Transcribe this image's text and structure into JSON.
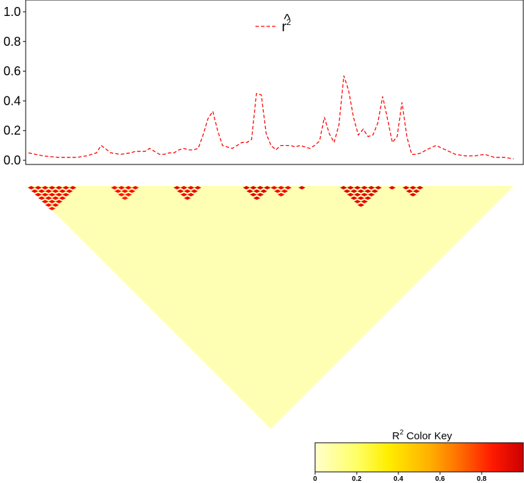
{
  "chart_data": [
    {
      "type": "line",
      "ylim": [
        0,
        1.0
      ],
      "y_ticks": [
        "0.0",
        "0.2",
        "0.4",
        "0.6",
        "0.8",
        "1.0"
      ],
      "legend": {
        "label_text": "r",
        "label_hat": "^",
        "label_exp": "2",
        "position": "top-center"
      },
      "series": [
        {
          "color": "#ff0000",
          "line_style": "dashed",
          "x": [
            0,
            3,
            6,
            8,
            10,
            12,
            14,
            15,
            17,
            19,
            21,
            22,
            24,
            25,
            26,
            27,
            28,
            29,
            30,
            31,
            32,
            33,
            34,
            35,
            36,
            37,
            38,
            39,
            40,
            41,
            42,
            43,
            44,
            45,
            46,
            47,
            48,
            49,
            50,
            51,
            52,
            53,
            54,
            55,
            56,
            57,
            58,
            59,
            60,
            61,
            62,
            63,
            64,
            65,
            66,
            67,
            68,
            69,
            70,
            71,
            72,
            73,
            74,
            75,
            76,
            77,
            78,
            79,
            80,
            81,
            82,
            84,
            86,
            88,
            90,
            92,
            94,
            95,
            96,
            98,
            100
          ],
          "y": [
            0.05,
            0.03,
            0.02,
            0.02,
            0.02,
            0.03,
            0.05,
            0.1,
            0.05,
            0.04,
            0.05,
            0.06,
            0.06,
            0.08,
            0.06,
            0.04,
            0.04,
            0.05,
            0.05,
            0.07,
            0.08,
            0.07,
            0.07,
            0.08,
            0.17,
            0.28,
            0.33,
            0.2,
            0.1,
            0.09,
            0.08,
            0.1,
            0.12,
            0.12,
            0.14,
            0.45,
            0.44,
            0.18,
            0.1,
            0.07,
            0.1,
            0.1,
            0.1,
            0.09,
            0.1,
            0.09,
            0.08,
            0.1,
            0.13,
            0.29,
            0.18,
            0.12,
            0.24,
            0.57,
            0.47,
            0.29,
            0.17,
            0.21,
            0.16,
            0.17,
            0.25,
            0.43,
            0.28,
            0.12,
            0.16,
            0.39,
            0.16,
            0.04,
            0.04,
            0.05,
            0.07,
            0.1,
            0.07,
            0.04,
            0.03,
            0.03,
            0.04,
            0.03,
            0.02,
            0.02,
            0.01
          ]
        }
      ]
    },
    {
      "type": "heatmap",
      "description_free": true,
      "rows": 70,
      "color_scale": [
        "#ffffcc",
        "#ffff00",
        "#ffa500",
        "#ff0000",
        "#cc0000"
      ],
      "hotspots": [
        {
          "from": 0.0,
          "to": 0.1,
          "r2": 0.85
        },
        {
          "from": 0.17,
          "to": 0.23,
          "r2": 0.75
        },
        {
          "from": 0.3,
          "to": 0.37,
          "r2": 0.85
        },
        {
          "from": 0.44,
          "to": 0.5,
          "r2": 0.95
        },
        {
          "from": 0.5,
          "to": 0.55,
          "r2": 0.8
        },
        {
          "from": 0.55,
          "to": 0.58,
          "r2": 0.9
        },
        {
          "from": 0.64,
          "to": 0.73,
          "r2": 0.95
        },
        {
          "from": 0.73,
          "to": 0.77,
          "r2": 0.85
        },
        {
          "from": 0.77,
          "to": 0.82,
          "r2": 0.9
        }
      ],
      "colorkey": {
        "title_text": "R",
        "title_exp": "2",
        "title_suffix": " Color Key",
        "ticks": [
          "0",
          "0.2",
          "0.4",
          "0.6",
          "0.8"
        ],
        "range": [
          0,
          1.0
        ]
      }
    }
  ]
}
